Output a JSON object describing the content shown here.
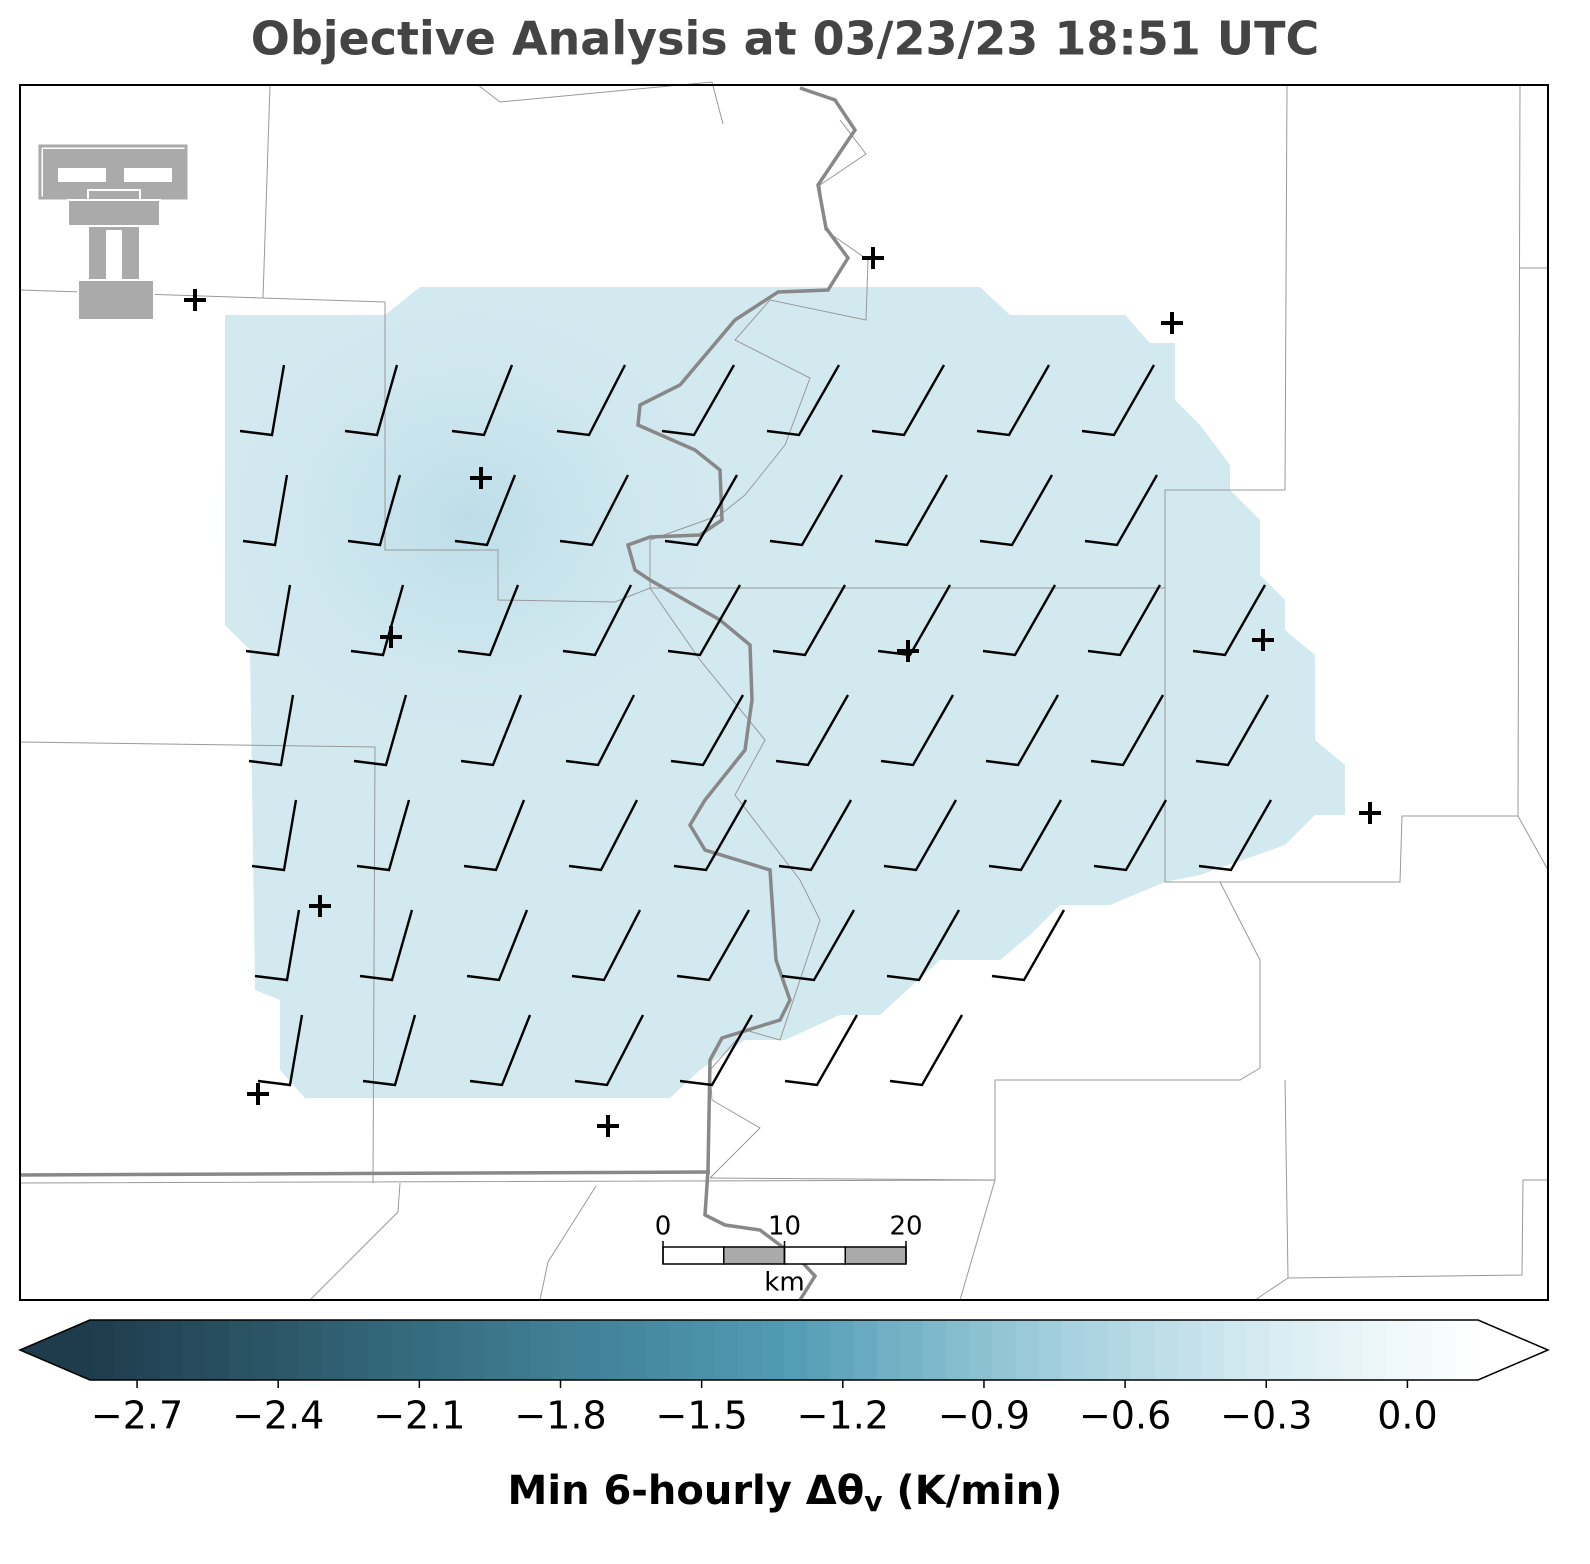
{
  "title": "Objective Analysis at 03/23/23 18:51 UTC",
  "colorbar": {
    "label": {
      "text": "Min 6-hourly Δθ",
      "subscript": "v",
      "units": "(K/min)"
    },
    "clim": [
      -2.8,
      0.15
    ],
    "ticks": [
      {
        "value": -2.7,
        "label": "−2.7"
      },
      {
        "value": -2.4,
        "label": "−2.4"
      },
      {
        "value": -2.1,
        "label": "−2.1"
      },
      {
        "value": -1.8,
        "label": "−1.8"
      },
      {
        "value": -1.5,
        "label": "−1.5"
      },
      {
        "value": -1.2,
        "label": "−1.2"
      },
      {
        "value": -0.9,
        "label": "−0.9"
      },
      {
        "value": -0.6,
        "label": "−0.6"
      },
      {
        "value": -0.3,
        "label": "−0.3"
      },
      {
        "value": 0,
        "label": "0.0"
      }
    ]
  },
  "scale_bar": {
    "ticks": [
      0,
      10,
      20
    ],
    "unit": "km"
  }
}
